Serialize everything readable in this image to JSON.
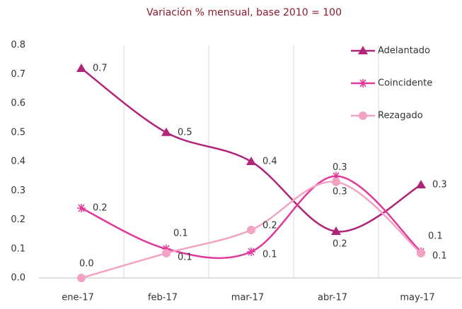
{
  "chart_data": {
    "type": "line",
    "title": "Variación % mensual, base 2010 = 100",
    "categories": [
      "ene-17",
      "feb-17",
      "mar-17",
      "abr-17",
      "may-17"
    ],
    "series": [
      {
        "name": "Adelantado",
        "color": "#b0247a",
        "marker": "triangle",
        "values": [
          0.72,
          0.5,
          0.4,
          0.16,
          0.32
        ],
        "value_labels": [
          "0.7",
          "0.5",
          "0.4",
          "0.2",
          "0.3"
        ]
      },
      {
        "name": "Coincidente",
        "color": "#e0399a",
        "marker": "asterisk",
        "values": [
          0.24,
          0.1,
          0.09,
          0.35,
          0.09
        ],
        "value_labels": [
          "0.2",
          "0.1",
          "0.1",
          "0.3",
          "0.1"
        ]
      },
      {
        "name": "Rezagado",
        "color": "#f2a3c4",
        "marker": "circle",
        "values": [
          0.0,
          0.085,
          0.165,
          0.33,
          0.085
        ],
        "value_labels": [
          "0.0",
          "0.1",
          "0.2",
          "0.3",
          "0.1"
        ]
      }
    ],
    "ylim": [
      0,
      0.8
    ],
    "yticks": [
      {
        "value": 0,
        "label": "0.0"
      },
      0.1,
      0.2,
      0.3,
      0.4,
      0.5,
      0.6,
      0.7,
      0.8
    ],
    "smooth": true,
    "grid": "vertical",
    "legend": "upper right"
  }
}
